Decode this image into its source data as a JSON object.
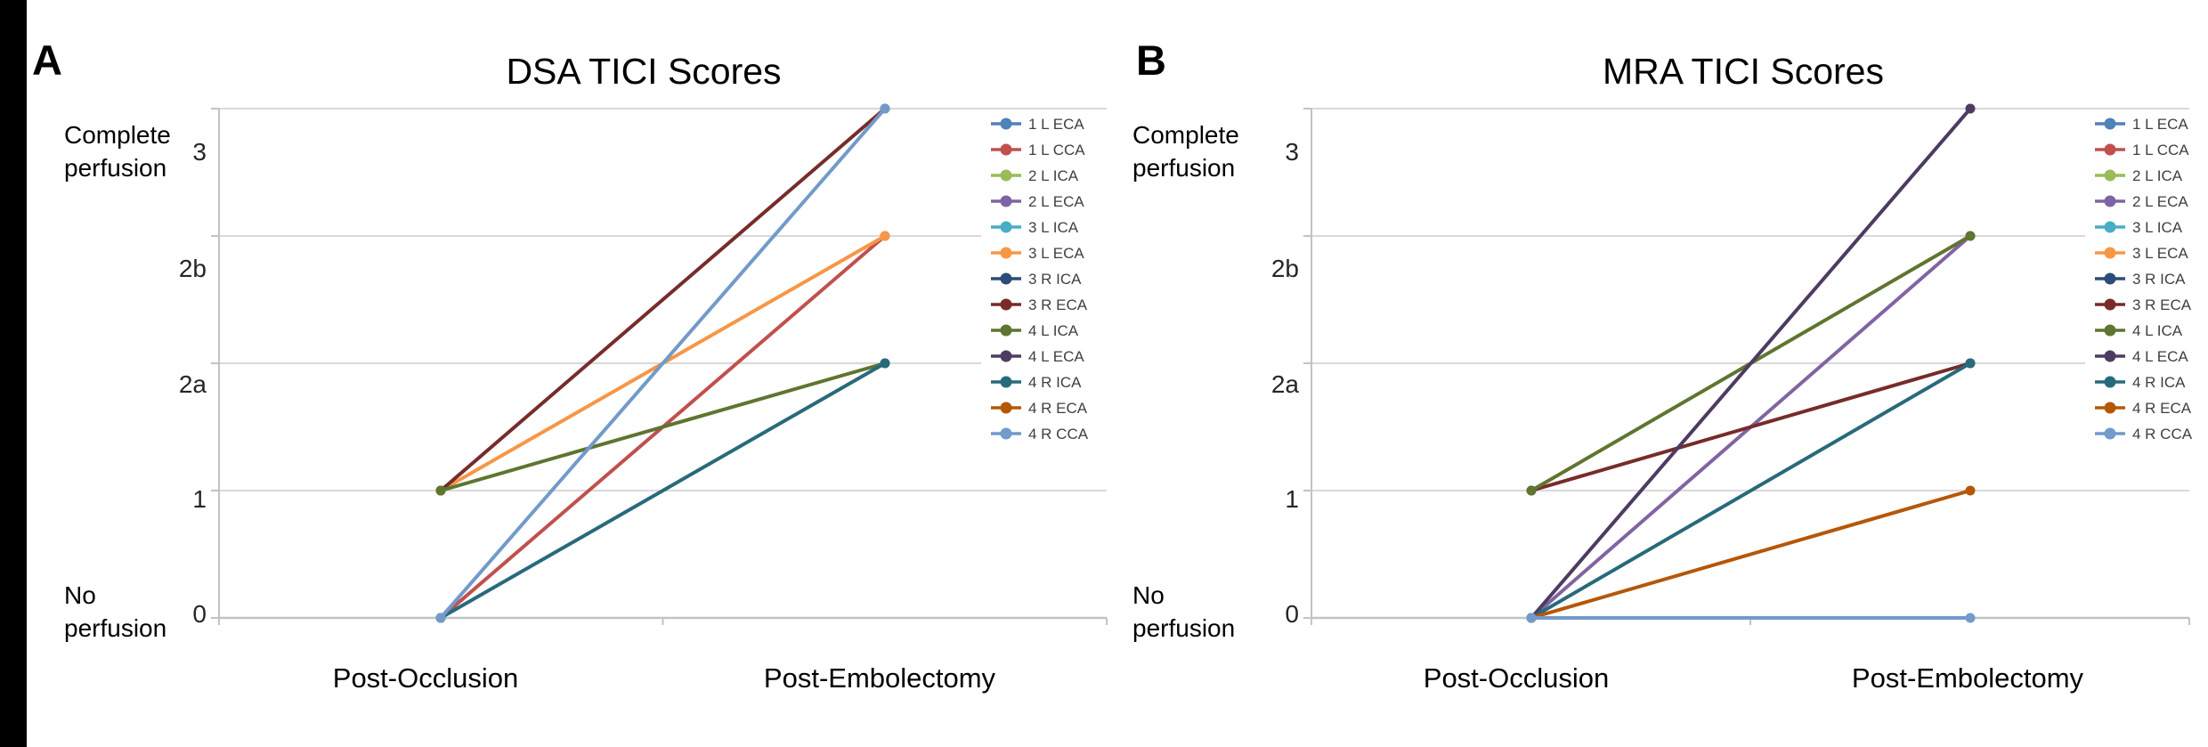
{
  "figure": {
    "panel_labels": [
      "A",
      "B"
    ]
  },
  "y_axis": {
    "tick_labels_top_to_bottom": [
      "3",
      "2b",
      "2a",
      "1",
      "0"
    ],
    "levels_bottom_to_top": [
      "0",
      "1",
      "2a",
      "2b",
      "3"
    ],
    "top_label": "Complete\nperfusion",
    "bottom_label": "No\nperfusion"
  },
  "legend": {
    "entries": [
      {
        "label": "1 L ECA",
        "color": "#4F81BD"
      },
      {
        "label": "1 L CCA",
        "color": "#C0504D"
      },
      {
        "label": "2 L ICA",
        "color": "#9BBB59"
      },
      {
        "label": "2 L ECA",
        "color": "#8064A2"
      },
      {
        "label": "3 L ICA",
        "color": "#4BACC6"
      },
      {
        "label": "3 L ECA",
        "color": "#F79646"
      },
      {
        "label": "3 R ICA",
        "color": "#2C4D75"
      },
      {
        "label": "3 R ECA",
        "color": "#772C2A"
      },
      {
        "label": "4 L ICA",
        "color": "#5F7530"
      },
      {
        "label": "4 L ECA",
        "color": "#4D3B62"
      },
      {
        "label": "4 R ICA",
        "color": "#276A7C"
      },
      {
        "label": "4 R ECA",
        "color": "#B65708"
      },
      {
        "label": "4 R CCA",
        "color": "#729ACA"
      }
    ]
  },
  "styles": {
    "gridline_color": "#D9D9D9",
    "axis_color": "#C3C3C3",
    "tick_text_color": "#262626",
    "legend_text_color": "#404040",
    "background_color": "#FFFFFF",
    "left_bar_color": "#000000"
  },
  "chart_data": [
    {
      "type": "line",
      "panel": "A",
      "title": "DSA TICI Scores",
      "categories": [
        "Post-Occlusion",
        "Post-Embolectomy"
      ],
      "y_tick_labels": [
        "0",
        "1",
        "2a",
        "2b",
        "3"
      ],
      "ylim": [
        "0",
        "3"
      ],
      "grid": true,
      "legend_position": "right",
      "series": [
        {
          "name": "1 L CCA",
          "color": "#C0504D",
          "values": [
            "0",
            "2b"
          ]
        },
        {
          "name": "3 L ECA",
          "color": "#F79646",
          "values": [
            "1",
            "2b"
          ]
        },
        {
          "name": "3 R ECA",
          "color": "#772C2A",
          "values": [
            "1",
            "3"
          ]
        },
        {
          "name": "4 L ICA",
          "color": "#5F7530",
          "values": [
            "1",
            "2a"
          ]
        },
        {
          "name": "4 R ICA",
          "color": "#276A7C",
          "values": [
            "0",
            "2a"
          ]
        },
        {
          "name": "4 R CCA",
          "color": "#729ACA",
          "values": [
            "0",
            "3"
          ]
        }
      ]
    },
    {
      "type": "line",
      "panel": "B",
      "title": "MRA TICI Scores",
      "categories": [
        "Post-Occlusion",
        "Post-Embolectomy"
      ],
      "y_tick_labels": [
        "0",
        "1",
        "2a",
        "2b",
        "3"
      ],
      "ylim": [
        "0",
        "3"
      ],
      "grid": true,
      "legend_position": "right",
      "series": [
        {
          "name": "2 L ECA",
          "color": "#8064A2",
          "values": [
            "0",
            "2b"
          ]
        },
        {
          "name": "3 R ECA",
          "color": "#772C2A",
          "values": [
            "1",
            "2a"
          ]
        },
        {
          "name": "4 L ICA",
          "color": "#5F7530",
          "values": [
            "1",
            "2b"
          ]
        },
        {
          "name": "4 L ECA",
          "color": "#4D3B62",
          "values": [
            "0",
            "3"
          ]
        },
        {
          "name": "4 R ICA",
          "color": "#276A7C",
          "values": [
            "0",
            "2a"
          ]
        },
        {
          "name": "4 R ECA",
          "color": "#B65708",
          "values": [
            "0",
            "1"
          ]
        },
        {
          "name": "4 R CCA",
          "color": "#729ACA",
          "values": [
            "0",
            "0"
          ]
        }
      ]
    }
  ]
}
